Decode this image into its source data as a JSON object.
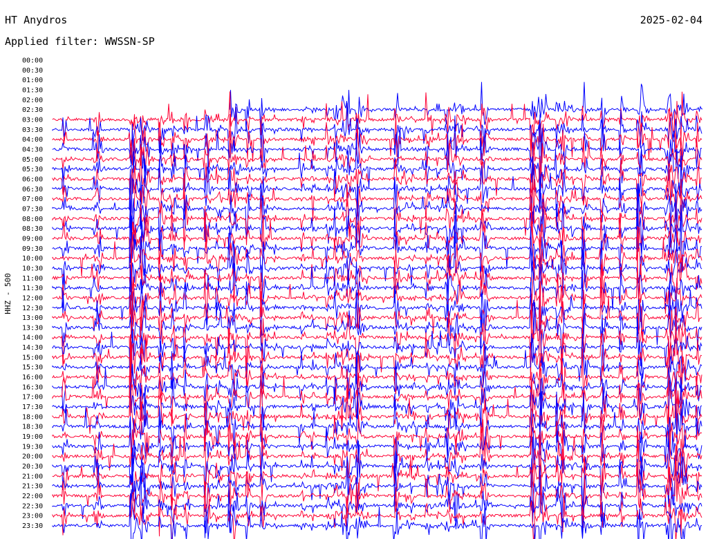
{
  "header": {
    "station": "HT Anydros",
    "date": "2025-02-04",
    "filter": "Applied filter: WWSSN-SP"
  },
  "chart_data": {
    "type": "line",
    "subtype": "helicorder",
    "ylabel": "HHZ - 500",
    "row_labels": [
      "00:00",
      "00:30",
      "01:00",
      "01:30",
      "02:00",
      "02:30",
      "03:00",
      "03:30",
      "04:00",
      "04:30",
      "05:00",
      "05:30",
      "06:00",
      "06:30",
      "07:00",
      "07:30",
      "08:00",
      "08:30",
      "09:00",
      "09:30",
      "10:00",
      "10:30",
      "11:00",
      "11:30",
      "12:00",
      "12:30",
      "13:00",
      "13:30",
      "14:00",
      "14:30",
      "15:00",
      "15:30",
      "16:00",
      "16:30",
      "17:00",
      "17:30",
      "18:00",
      "18:30",
      "19:00",
      "19:30",
      "20:00",
      "20:30",
      "21:00",
      "21:30",
      "22:00",
      "22:30",
      "23:00",
      "23:30"
    ],
    "data_start_label": "02:30",
    "trace_colors": [
      "#ff0033",
      "#0000ff"
    ],
    "grid": false,
    "legend": "none"
  },
  "colors": {
    "background": "#ffffff",
    "text": "#000000"
  }
}
